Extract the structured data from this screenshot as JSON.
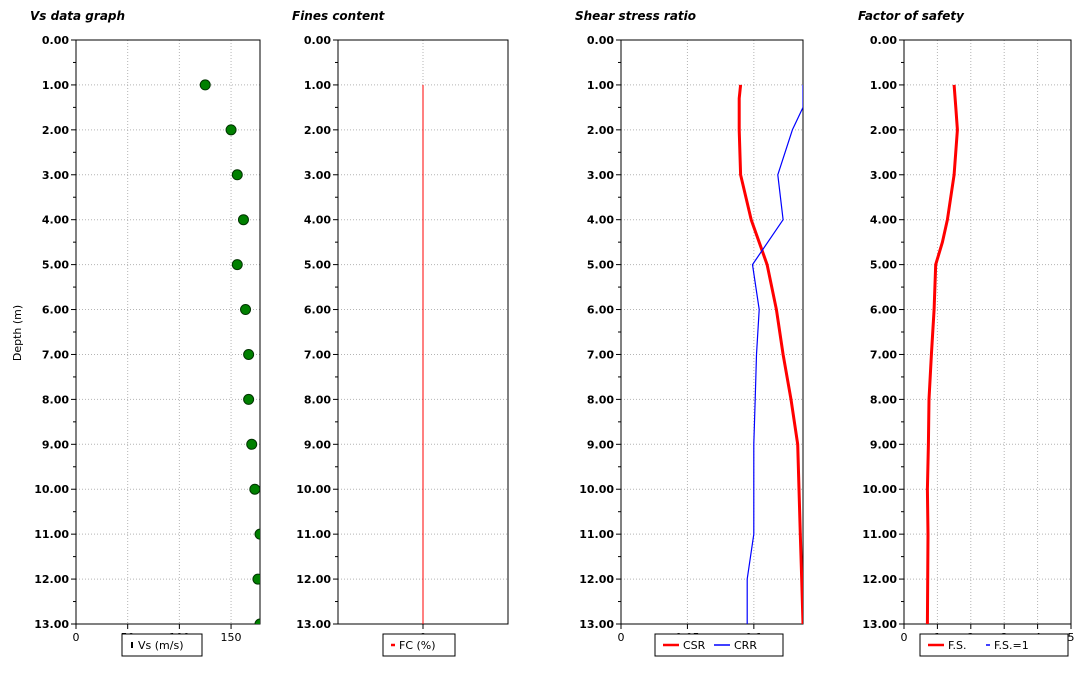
{
  "chart_data": [
    {
      "type": "scatter",
      "title": "Vs data graph",
      "ylabel": "Depth (m)",
      "ylim": [
        0,
        13
      ],
      "y_tick_labels": [
        "0.00",
        "1.00",
        "2.00",
        "3.00",
        "4.00",
        "5.00",
        "6.00",
        "7.00",
        "8.00",
        "9.00",
        "10.00",
        "11.00",
        "12.00",
        "13.00"
      ],
      "xlim": [
        0,
        178
      ],
      "x_ticks": [
        0,
        50,
        100,
        150
      ],
      "x_tick_labels": [
        "0",
        "50",
        "100",
        "150"
      ],
      "grid": true,
      "legend_position": "bottom",
      "series": [
        {
          "name": "Vs (m/s)",
          "color": "#006400",
          "x": [
            125,
            150,
            156,
            162,
            156,
            164,
            167,
            167,
            170,
            173,
            178,
            176,
            178
          ],
          "y": [
            1,
            2,
            3,
            4,
            5,
            6,
            7,
            8,
            9,
            10,
            11,
            12,
            13
          ]
        }
      ]
    },
    {
      "type": "line",
      "title": "Fines content",
      "ylim": [
        0,
        13
      ],
      "y_tick_labels": [
        "0.00",
        "1.00",
        "2.00",
        "3.00",
        "4.00",
        "5.00",
        "6.00",
        "7.00",
        "8.00",
        "9.00",
        "10.00",
        "11.00",
        "12.00",
        "13.00"
      ],
      "xlim": [
        -1,
        1
      ],
      "x_ticks": [
        0
      ],
      "x_tick_labels": [
        "0"
      ],
      "grid": true,
      "legend_position": "bottom",
      "series": [
        {
          "name": "FC (%)",
          "color": "#ff0000",
          "x": [
            0,
            0
          ],
          "y": [
            1,
            13
          ]
        }
      ]
    },
    {
      "type": "line",
      "title": "Shear stress ratio",
      "ylim": [
        0,
        13
      ],
      "y_tick_labels": [
        "0.00",
        "1.00",
        "2.00",
        "3.00",
        "4.00",
        "5.00",
        "6.00",
        "7.00",
        "8.00",
        "9.00",
        "10.00",
        "11.00",
        "12.00",
        "13.00"
      ],
      "xlim": [
        0,
        0.137
      ],
      "x_ticks": [
        0,
        0.05,
        0.1
      ],
      "x_tick_labels": [
        "0",
        "0.05",
        "0.1"
      ],
      "grid": true,
      "legend_position": "bottom",
      "series": [
        {
          "name": "CSR",
          "color": "#ff0000",
          "x": [
            0.09,
            0.089,
            0.089,
            0.09,
            0.098,
            0.11,
            0.117,
            0.122,
            0.128,
            0.133,
            0.134,
            0.135,
            0.136,
            0.137
          ],
          "y": [
            1,
            1.3,
            2,
            3,
            4,
            5,
            6,
            7,
            8,
            9,
            10,
            11,
            12,
            13
          ]
        }
      ],
      "series_2": [
        {
          "name": "CRR",
          "color": "#0000ff",
          "x": [
            0.137,
            0.137,
            0.129,
            0.118,
            0.122,
            0.099,
            0.104,
            0.102,
            0.101,
            0.1,
            0.1,
            0.1,
            0.095,
            0.095
          ],
          "y": [
            1,
            1.5,
            2,
            3,
            4,
            5,
            6,
            7,
            8,
            9,
            10,
            11,
            12,
            13
          ]
        }
      ]
    },
    {
      "type": "line",
      "title": "Factor of safety",
      "ylim": [
        0,
        13
      ],
      "y_tick_labels": [
        "0.00",
        "1.00",
        "2.00",
        "3.00",
        "4.00",
        "5.00",
        "6.00",
        "7.00",
        "8.00",
        "9.00",
        "10.00",
        "11.00",
        "12.00",
        "13.00"
      ],
      "xlim": [
        0,
        5
      ],
      "x_ticks": [
        0,
        1,
        2,
        3,
        4,
        5
      ],
      "x_tick_labels": [
        "0",
        "1",
        "2",
        "3",
        "4",
        "5"
      ],
      "grid": true,
      "legend_position": "bottom",
      "series": [
        {
          "name": "F.S.",
          "color": "#ff0000",
          "x": [
            1.5,
            1.55,
            1.6,
            1.5,
            1.3,
            1.15,
            0.95,
            0.9,
            0.82,
            0.75,
            0.73,
            0.7,
            0.72,
            0.7
          ],
          "y": [
            1,
            1.5,
            2,
            3,
            4,
            4.5,
            5,
            6,
            7,
            8,
            9,
            10,
            11,
            13
          ]
        }
      ],
      "series_2": [
        {
          "name": "F.S.=1",
          "color": "#0000ff",
          "x": [],
          "y": []
        }
      ]
    }
  ]
}
